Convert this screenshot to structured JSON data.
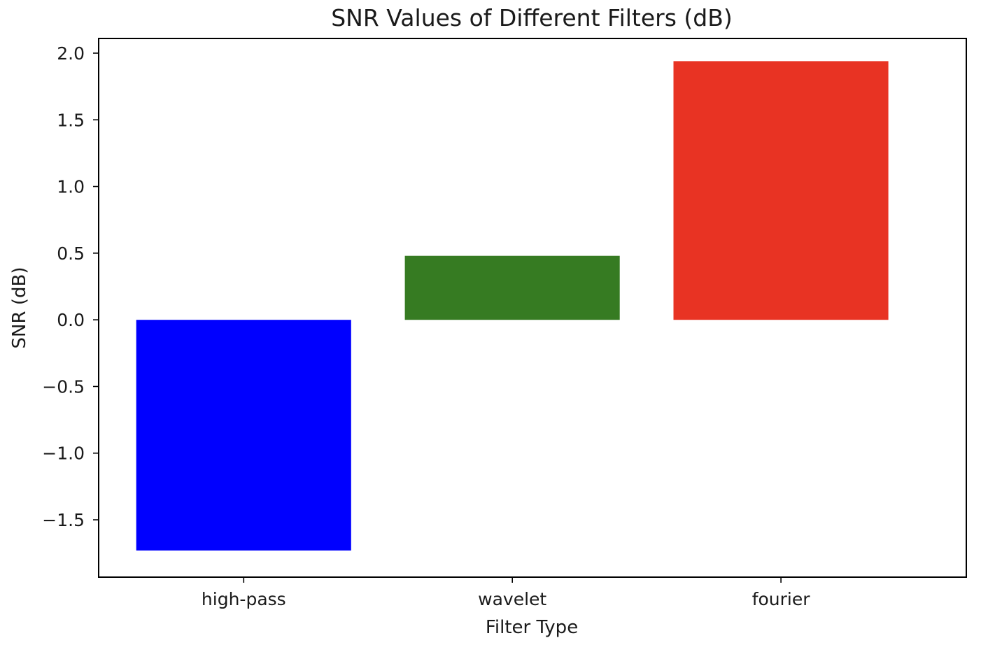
{
  "chart_data": {
    "type": "bar",
    "title": "SNR Values of Different Filters (dB)",
    "xlabel": "Filter Type",
    "ylabel": "SNR (dB)",
    "categories": [
      "high-pass",
      "wavelet",
      "fourier"
    ],
    "values": [
      -1.73,
      0.48,
      1.94
    ],
    "colors": [
      "#0000ff",
      "#367b22",
      "#e83323"
    ],
    "ylim": [
      -1.93,
      2.11
    ],
    "yticks": [
      2.0,
      1.5,
      1.0,
      0.5,
      0.0,
      -0.5,
      -1.0,
      -1.5
    ],
    "ytick_labels": [
      "2.0",
      "1.5",
      "1.0",
      "0.5",
      "0.0",
      "−0.5",
      "−1.0",
      "−1.5"
    ],
    "grid": false,
    "legend": "none"
  }
}
